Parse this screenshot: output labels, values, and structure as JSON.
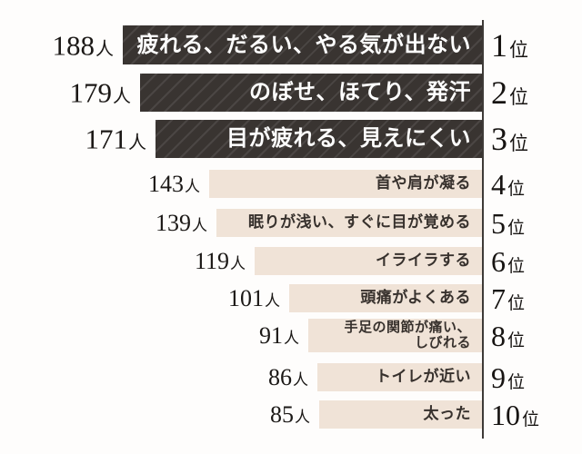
{
  "chart_data": {
    "type": "bar",
    "orientation": "horizontal",
    "bar_anchor": "right",
    "title": "",
    "unit_suffix": "人",
    "rank_suffix": "位",
    "axis_line": true,
    "value_axis_hidden": true,
    "colors": {
      "emphasis_bar": "#393431",
      "emphasis_hatch": "#4a4441",
      "bar": "#f0e3d7",
      "emphasis_text": "#ffffff",
      "text": "#37312d",
      "axis": "#3e3a37",
      "background": "#fefdfc"
    },
    "rows": [
      {
        "rank": "1",
        "value": 188,
        "label": "疲れる、だるい、やる気が出ない",
        "emphasis": true
      },
      {
        "rank": "2",
        "value": 179,
        "label": "のぼせ、ほてり、発汗",
        "emphasis": true
      },
      {
        "rank": "3",
        "value": 171,
        "label": "目が疲れる、見えにくい",
        "emphasis": true
      },
      {
        "rank": "4",
        "value": 143,
        "label": "首や肩が凝る",
        "emphasis": false
      },
      {
        "rank": "5",
        "value": 139,
        "label": "眠りが浅い、すぐに目が覚める",
        "emphasis": false
      },
      {
        "rank": "6",
        "value": 119,
        "label": "イライラする",
        "emphasis": false
      },
      {
        "rank": "7",
        "value": 101,
        "label": "頭痛がよくある",
        "emphasis": false
      },
      {
        "rank": "8",
        "value": 91,
        "label": "手足の関節が痛い、\nしびれる",
        "emphasis": false
      },
      {
        "rank": "9",
        "value": 86,
        "label": "トイレが近い",
        "emphasis": false
      },
      {
        "rank": "10",
        "value": 85,
        "label": "太った",
        "emphasis": false
      }
    ]
  }
}
